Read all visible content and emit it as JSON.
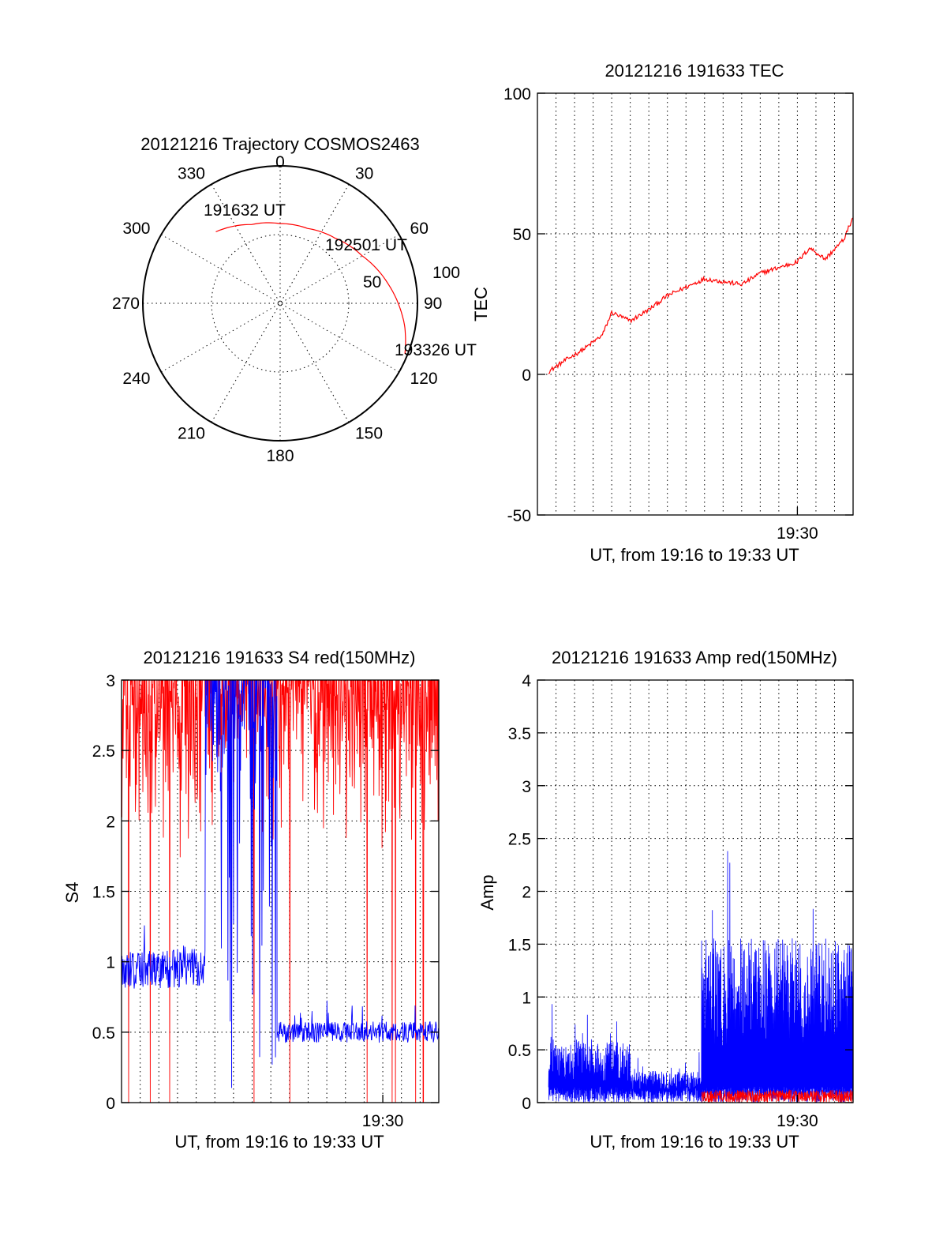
{
  "colors": {
    "red": "#ff0000",
    "blue": "#0000ff",
    "axis": "#000000"
  },
  "chart_data": [
    {
      "id": "trajectory",
      "type": "polar",
      "title": "20121216 Trajectory COSMOS2463",
      "azimuth_labels": [
        "0",
        "30",
        "60",
        "90",
        "120",
        "150",
        "180",
        "210",
        "240",
        "270",
        "300",
        "330"
      ],
      "radial_labels": [
        "50",
        "100"
      ],
      "radial_range": [
        0,
        100
      ],
      "track_color": "red",
      "track": [
        {
          "az": 318,
          "r": 70,
          "label": "191632 UT"
        },
        {
          "az": 340,
          "r": 61
        },
        {
          "az": 0,
          "r": 58
        },
        {
          "az": 20,
          "r": 58
        },
        {
          "az": 40,
          "r": 62,
          "label": "192501 UT"
        },
        {
          "az": 60,
          "r": 69
        },
        {
          "az": 80,
          "r": 80
        },
        {
          "az": 100,
          "r": 92
        },
        {
          "az": 112,
          "r": 98,
          "label": "193326 UT"
        }
      ]
    },
    {
      "id": "tec",
      "type": "line",
      "title": "20121216 191633 TEC",
      "xlabel": "UT, from 19:16 to 19:33 UT",
      "ylabel": "TEC",
      "xlim": [
        "19:16",
        "19:33"
      ],
      "ylim": [
        -50,
        100
      ],
      "yticks": [
        "-50",
        "0",
        "50",
        "100"
      ],
      "xtick_labels": [
        "19:30"
      ],
      "xtick_positions": [
        "19:30"
      ],
      "series": [
        {
          "color": "red",
          "x": [
            "19:16:36",
            "19:17:30",
            "19:18:30",
            "19:19:30",
            "19:20:00",
            "19:21:00",
            "19:22:00",
            "19:23:00",
            "19:24:00",
            "19:25:00",
            "19:26:00",
            "19:27:00",
            "19:28:00",
            "19:29:00",
            "19:30:00",
            "19:30:40",
            "19:31:30",
            "19:32:30",
            "19:33:00"
          ],
          "values": [
            1,
            5,
            9,
            14,
            22,
            19,
            23,
            28,
            31,
            34,
            33,
            32,
            36,
            38,
            40,
            45,
            41,
            48,
            56
          ]
        }
      ]
    },
    {
      "id": "s4",
      "type": "line",
      "title": "20121216 191633 S4 red(150MHz)",
      "xlabel": "UT, from 19:16 to 19:33 UT",
      "ylabel": "S4",
      "xlim": [
        "19:16",
        "19:33"
      ],
      "ylim": [
        0,
        3
      ],
      "yticks": [
        "0",
        "0.5",
        "1",
        "1.5",
        "2",
        "2.5",
        "3"
      ],
      "xtick_labels": [
        "19:30"
      ],
      "xtick_positions": [
        "19:30"
      ],
      "series": [
        {
          "color": "red",
          "description_levels": {
            "typical_min": 1.9,
            "typical_max": 3.0
          },
          "x_range": [
            "19:16",
            "19:33"
          ],
          "mean": 2.55
        },
        {
          "color": "blue",
          "segments": [
            {
              "x": [
                "19:16",
                "19:20:30"
              ],
              "mean": 0.95
            },
            {
              "x": [
                "19:20:30",
                "19:24:20"
              ],
              "mean": 2.6
            },
            {
              "x": [
                "19:24:20",
                "19:33"
              ],
              "mean": 0.5
            }
          ]
        }
      ]
    },
    {
      "id": "amp",
      "type": "line",
      "title": "20121216 191633 Amp red(150MHz)",
      "xlabel": "UT, from 19:16 to 19:33 UT",
      "ylabel": "Amp",
      "xlim": [
        "19:16",
        "19:33"
      ],
      "ylim": [
        0,
        4
      ],
      "yticks": [
        "0",
        "0.5",
        "1",
        "1.5",
        "2",
        "2.5",
        "3",
        "3.5",
        "4"
      ],
      "xtick_labels": [
        "19:30"
      ],
      "xtick_positions": [
        "19:30"
      ],
      "series": [
        {
          "color": "blue",
          "segments": [
            {
              "x": [
                "19:16:36",
                "19:21:00"
              ],
              "mean": 0.5
            },
            {
              "x": [
                "19:21:00",
                "19:24:50"
              ],
              "mean": 0.25
            },
            {
              "x": [
                "19:24:50",
                "19:33"
              ],
              "mean": 1.3
            }
          ]
        },
        {
          "color": "red",
          "segments": [
            {
              "x": [
                "19:24:50",
                "19:33"
              ],
              "mean": 0.06
            }
          ]
        }
      ]
    }
  ]
}
